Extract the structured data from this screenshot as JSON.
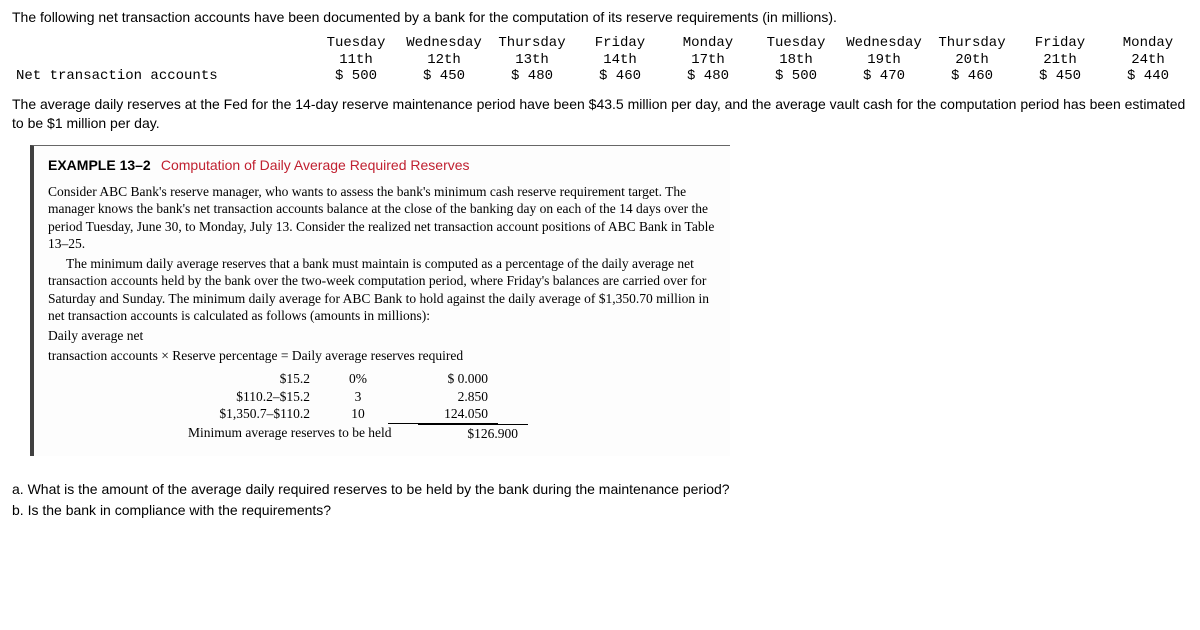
{
  "intro": "The following net transaction accounts have been documented by a bank for the computation of its reserve requirements (in millions).",
  "table": {
    "row_label": "Net transaction accounts",
    "days": [
      {
        "name": "Tuesday",
        "date": "11th",
        "value": "$ 500"
      },
      {
        "name": "Wednesday",
        "date": "12th",
        "value": "$ 450"
      },
      {
        "name": "Thursday",
        "date": "13th",
        "value": "$ 480"
      },
      {
        "name": "Friday",
        "date": "14th",
        "value": "$ 460"
      },
      {
        "name": "Monday",
        "date": "17th",
        "value": "$ 480"
      },
      {
        "name": "Tuesday",
        "date": "18th",
        "value": "$ 500"
      },
      {
        "name": "Wednesday",
        "date": "19th",
        "value": "$ 470"
      },
      {
        "name": "Thursday",
        "date": "20th",
        "value": "$ 460"
      },
      {
        "name": "Friday",
        "date": "21th",
        "value": "$ 450"
      },
      {
        "name": "Monday",
        "date": "24th",
        "value": "$ 440"
      }
    ]
  },
  "mid_text": "The average daily reserves at the Fed for the 14-day reserve maintenance period have been $43.5 million per day, and the average vault cash for the computation period has been estimated to be $1 million per day.",
  "example": {
    "label": "EXAMPLE 13–2",
    "subtitle": "Computation of Daily Average Required Reserves",
    "p1": "Consider ABC Bank's reserve manager, who wants to assess the bank's minimum cash reserve requirement target. The manager knows the bank's net transaction accounts balance at the close of the banking day on each of the 14 days over the period Tuesday, June 30, to Monday, July 13. Consider the realized net transaction account positions of ABC Bank in Table 13–25.",
    "p2": "The minimum daily average reserves that a bank must maintain is computed as a percentage of the daily average net transaction accounts held by the bank over the two-week computation period, where Friday's balances are carried over for Saturday and Sunday. The minimum daily average for ABC Bank to hold against the daily average of $1,350.70 million in net transaction accounts is calculated as follows (amounts in millions):",
    "p3": "Daily average net",
    "p4": "transaction accounts × Reserve percentage = Daily average reserves required",
    "calc": {
      "rows": [
        {
          "a": "$15.2",
          "b": "0%",
          "c": "$  0.000"
        },
        {
          "a": "$110.2–$15.2",
          "b": "3",
          "c": "2.850"
        },
        {
          "a": "$1,350.7–$110.2",
          "b": "10",
          "c": "124.050"
        }
      ],
      "total_label": "Minimum average reserves to be held",
      "total_value": "$126.900"
    }
  },
  "questions": {
    "a": "a. What is the amount of the average daily required reserves to be held by the bank during the maintenance period?",
    "b": "b. Is the bank in compliance with the requirements?"
  }
}
